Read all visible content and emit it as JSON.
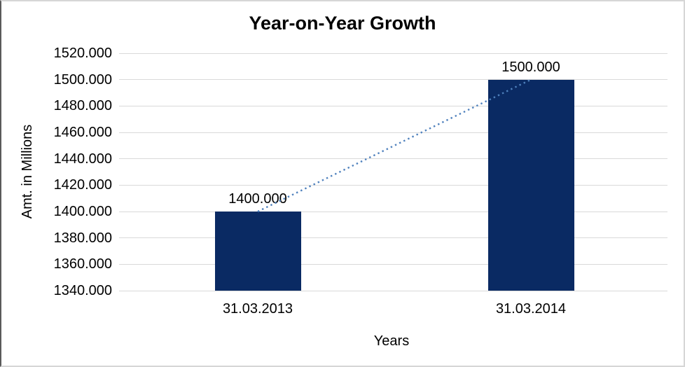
{
  "chart_data": {
    "type": "bar",
    "title": "Year-on-Year Growth",
    "xlabel": "Years",
    "ylabel": "Amt. in Millions",
    "categories": [
      "31.03.2013",
      "31.03.2014"
    ],
    "values": [
      1400.0,
      1500.0
    ],
    "value_labels": [
      "1400.000",
      "1500.000"
    ],
    "ylim": [
      1340,
      1520
    ],
    "ytick_step": 20,
    "ytick_labels": [
      "1520.000",
      "1500.000",
      "1480.000",
      "1460.000",
      "1440.000",
      "1420.000",
      "1400.000",
      "1380.000",
      "1360.000",
      "1340.000"
    ],
    "grid": true,
    "legend": "none",
    "bar_color": "#0a2a63",
    "gridline_color": "#d9d9d9",
    "background_color": "#ffffff",
    "trendline": {
      "style": "dotted",
      "color": "#4f81bd",
      "connects": [
        "top of 31.03.2013 bar",
        "top of 31.03.2014 bar"
      ]
    }
  }
}
